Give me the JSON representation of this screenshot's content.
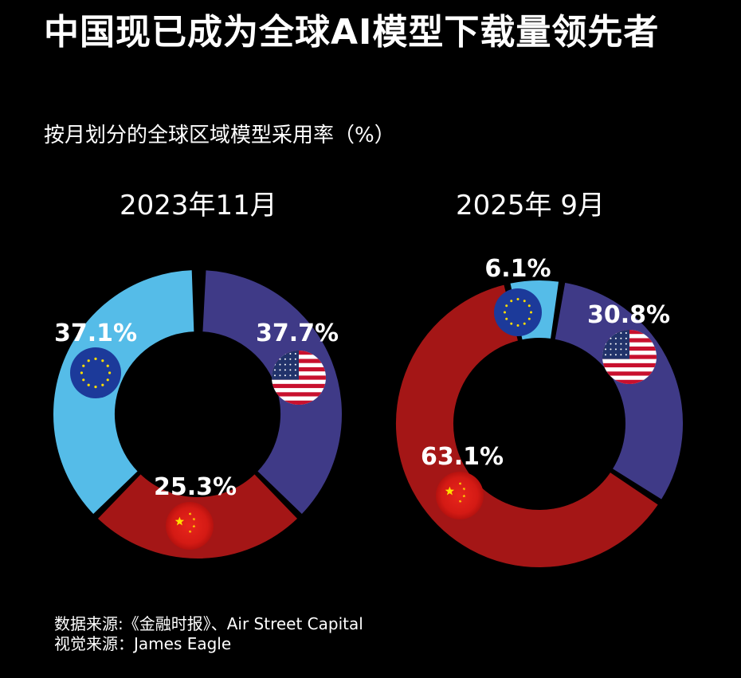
{
  "title": "中国现已成为全球AI模型下载量领先者",
  "subtitle": "按月划分的全球区域模型采用率（%）",
  "chart_data": [
    {
      "type": "pie",
      "title": "2023年11月",
      "categories": [
        "美国",
        "中国",
        "欧盟"
      ],
      "values": [
        37.7,
        25.3,
        37.1
      ],
      "labels": [
        "37.7%",
        "25.3%",
        "37.1%"
      ],
      "colors": [
        "#3f3a87",
        "#a41616",
        "#55bce8"
      ]
    },
    {
      "type": "pie",
      "title": "2025年 9月",
      "categories": [
        "美国",
        "中国",
        "欧盟"
      ],
      "values": [
        30.8,
        63.1,
        6.1
      ],
      "labels": [
        "30.8%",
        "63.1%",
        "6.1%"
      ],
      "colors": [
        "#3f3a87",
        "#a41616",
        "#55bce8"
      ]
    }
  ],
  "footer": {
    "source": "数据来源:《金融时报》、Air Street Capital",
    "visual": "视觉来源：James Eagle"
  },
  "icons": [
    "eu-flag-icon",
    "us-flag-icon",
    "china-flag-icon"
  ]
}
